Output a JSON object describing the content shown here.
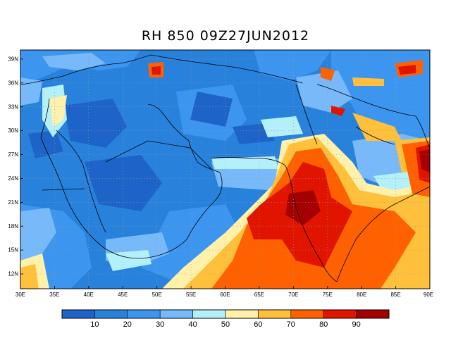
{
  "title": "RH 850 09Z27JUN2012",
  "map": {
    "lat_ticks": [
      "39N",
      "36N",
      "33N",
      "30N",
      "27N",
      "24N",
      "21N",
      "18N",
      "15N",
      "12N"
    ],
    "lon_ticks": [
      "30E",
      "35E",
      "40E",
      "45E",
      "50E",
      "55E",
      "60E",
      "65E",
      "70E",
      "75E",
      "80E",
      "85E",
      "90E"
    ],
    "extent": {
      "lon_min": 30,
      "lon_max": 90,
      "lat_min": 10,
      "lat_max": 40
    }
  },
  "colorbar": {
    "labels": [
      "10",
      "20",
      "30",
      "40",
      "50",
      "60",
      "70",
      "80",
      "90"
    ],
    "colors": [
      "#1e64c8",
      "#2882dc",
      "#3c96f0",
      "#78b9fa",
      "#b4f0fa",
      "#fff0aa",
      "#ffc03c",
      "#ff6000",
      "#e11400",
      "#a50000"
    ]
  }
}
